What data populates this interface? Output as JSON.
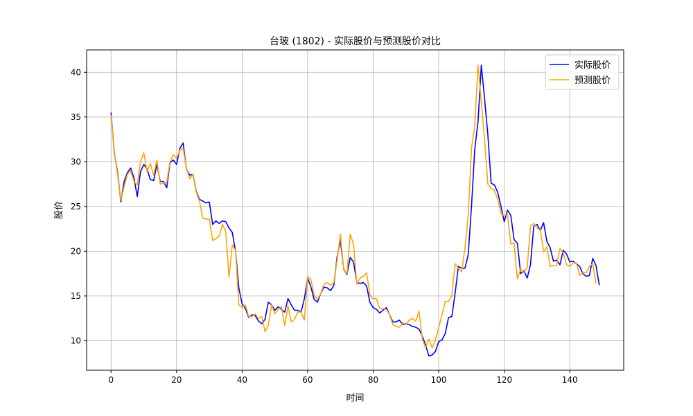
{
  "chart_data": {
    "type": "line",
    "title": "台玻 (1802) - 实际股价与预测股价对比",
    "xlabel": "时间",
    "ylabel": "股价",
    "xlim": [
      -7.45,
      156.45
    ],
    "ylim": [
      6.7,
      42.5
    ],
    "xticks": [
      0,
      20,
      40,
      60,
      80,
      100,
      120,
      140
    ],
    "yticks": [
      10,
      15,
      20,
      25,
      30,
      35,
      40
    ],
    "grid": true,
    "legend_position": "top-right",
    "series": [
      {
        "name": "实际股价",
        "color": "#0000ff",
        "values": [
          35.5,
          31.0,
          28.8,
          25.5,
          27.8,
          28.8,
          29.3,
          28.2,
          26.1,
          28.9,
          29.7,
          29.2,
          28.0,
          27.9,
          29.7,
          27.8,
          27.8,
          27.1,
          29.9,
          30.2,
          29.7,
          31.5,
          32.1,
          29.2,
          28.5,
          28.6,
          26.7,
          25.8,
          25.6,
          25.4,
          25.5,
          23.0,
          23.4,
          23.1,
          23.4,
          23.3,
          22.6,
          22.1,
          20.0,
          15.9,
          14.1,
          13.6,
          12.6,
          12.9,
          12.8,
          12.2,
          11.9,
          12.4,
          14.3,
          14.0,
          13.4,
          13.8,
          13.5,
          13.2,
          14.7,
          14.0,
          13.4,
          13.4,
          13.2,
          14.7,
          17.0,
          16.0,
          14.6,
          14.3,
          15.3,
          16.0,
          15.9,
          15.6,
          16.2,
          19.4,
          21.2,
          18.0,
          17.4,
          19.3,
          18.8,
          16.5,
          16.4,
          16.5,
          16.1,
          14.3,
          13.7,
          13.5,
          13.1,
          13.4,
          13.7,
          12.9,
          12.1,
          12.1,
          12.3,
          11.8,
          11.9,
          11.8,
          11.6,
          11.5,
          11.3,
          10.5,
          9.5,
          8.3,
          8.4,
          8.8,
          9.9,
          10.1,
          10.8,
          12.6,
          12.7,
          15.3,
          18.3,
          18.1,
          18.1,
          19.6,
          25.0,
          31.4,
          34.5,
          40.8,
          37.0,
          33.0,
          27.6,
          27.4,
          26.6,
          25.0,
          23.3,
          24.6,
          24.0,
          21.3,
          20.9,
          17.5,
          17.8,
          17.0,
          18.5,
          22.8,
          23.0,
          22.3,
          23.2,
          21.1,
          20.4,
          18.9,
          19.0,
          18.5,
          20.1,
          19.7,
          18.8,
          18.9,
          18.6,
          18.3,
          17.5,
          17.2,
          17.3,
          19.2,
          18.4,
          16.2
        ]
      },
      {
        "name": "预测股价",
        "color": "#ffa500",
        "values": [
          35.2,
          31.2,
          28.5,
          25.7,
          27.2,
          28.6,
          29.0,
          27.8,
          27.4,
          30.0,
          31.0,
          28.9,
          29.8,
          28.5,
          30.2,
          27.5,
          27.6,
          27.7,
          30.0,
          30.8,
          30.4,
          31.3,
          31.5,
          29.3,
          28.1,
          28.6,
          26.6,
          25.6,
          23.7,
          23.6,
          23.6,
          21.2,
          21.4,
          21.7,
          23.0,
          22.2,
          17.1,
          20.7,
          20.1,
          14.0,
          13.7,
          14.0,
          12.7,
          12.7,
          13.0,
          12.5,
          12.7,
          11.0,
          11.7,
          14.0,
          13.0,
          13.5,
          13.8,
          11.7,
          13.9,
          12.1,
          12.4,
          13.2,
          13.2,
          12.3,
          17.2,
          16.8,
          15.1,
          14.6,
          15.3,
          16.3,
          16.5,
          16.2,
          16.5,
          19.0,
          21.9,
          17.9,
          17.5,
          21.9,
          20.8,
          16.3,
          17.0,
          17.2,
          17.6,
          15.1,
          14.7,
          14.7,
          13.6,
          13.6,
          13.5,
          12.9,
          11.8,
          11.6,
          11.5,
          12.0,
          11.8,
          12.3,
          12.5,
          12.2,
          13.3,
          10.2,
          9.2,
          10.2,
          9.2,
          10.1,
          11.5,
          12.9,
          14.4,
          14.4,
          15.0,
          18.6,
          18.1,
          17.7,
          20.3,
          24.0,
          31.5,
          34.0,
          40.8,
          36.7,
          32.5,
          27.5,
          27.0,
          26.8,
          25.8,
          24.2,
          24.0,
          24.1,
          20.8,
          20.9,
          16.9,
          18.0,
          17.6,
          18.2,
          22.8,
          23.1,
          22.6,
          22.4,
          19.9,
          20.5,
          18.3,
          18.4,
          18.4,
          20.3,
          19.8,
          18.5,
          18.3,
          18.7,
          18.7,
          17.3,
          17.6,
          17.6,
          18.3,
          18.6,
          16.4
        ]
      }
    ]
  }
}
